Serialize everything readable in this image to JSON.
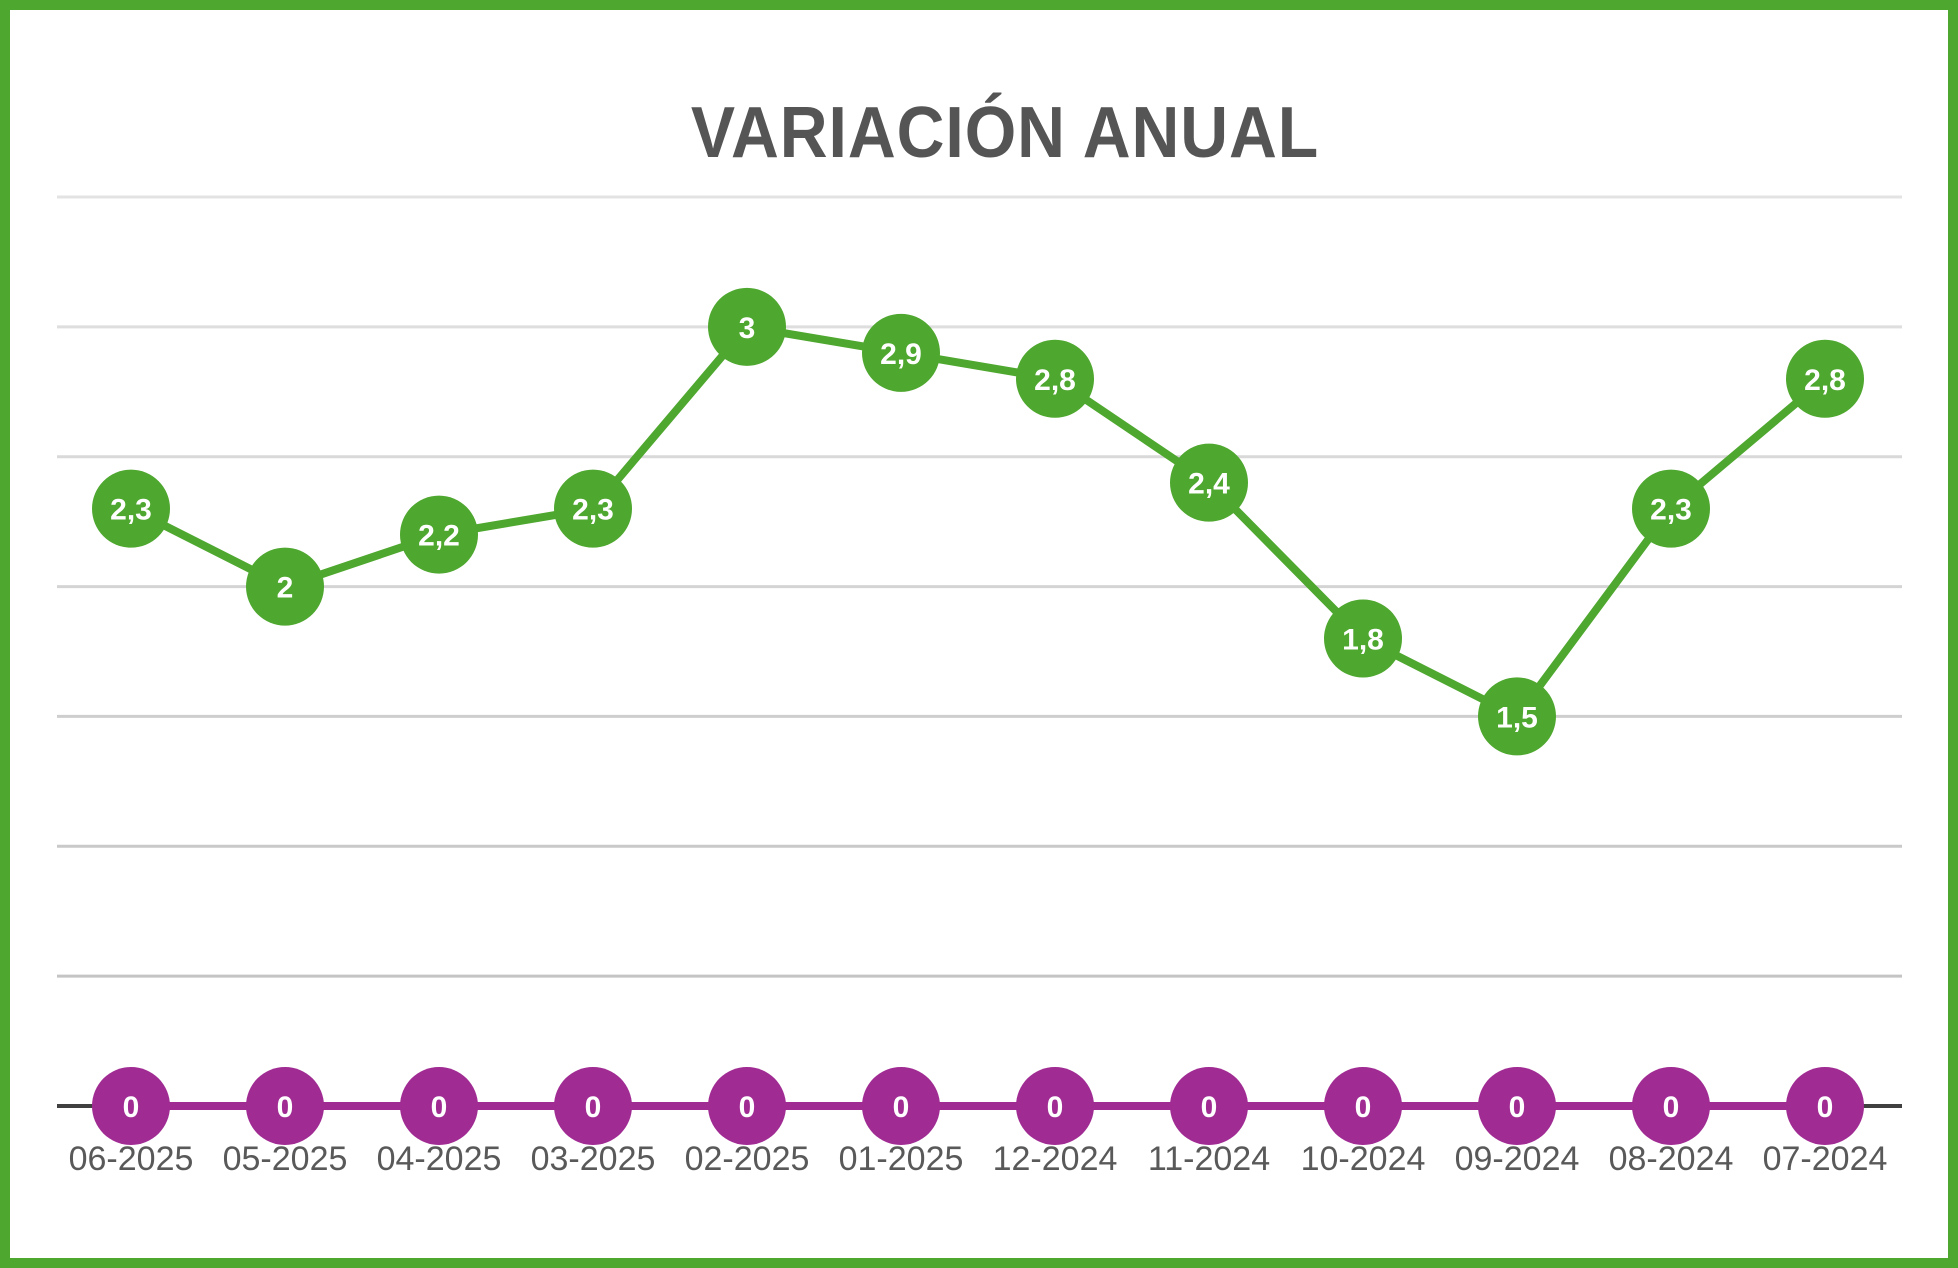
{
  "chart_data": {
    "type": "line",
    "title": "VARIACIÓN ANUAL",
    "xlabel": "",
    "ylabel": "",
    "categories": [
      "06-2025",
      "05-2025",
      "04-2025",
      "03-2025",
      "02-2025",
      "01-2025",
      "12-2024",
      "11-2024",
      "10-2024",
      "09-2024",
      "08-2024",
      "07-2024"
    ],
    "series": [
      {
        "color": "#4ea72e",
        "values": [
          2.3,
          2,
          2.2,
          2.3,
          3,
          2.9,
          2.8,
          2.4,
          1.8,
          1.5,
          2.3,
          2.8
        ],
        "labels": [
          "2,3",
          "2",
          "2,2",
          "2,3",
          "3",
          "2,9",
          "2,8",
          "2,4",
          "1,8",
          "1,5",
          "2,3",
          "2,8"
        ]
      },
      {
        "color": "#a02b93",
        "values": [
          0,
          0,
          0,
          0,
          0,
          0,
          0,
          0,
          0,
          0,
          0,
          0
        ],
        "labels": [
          "0",
          "0",
          "0",
          "0",
          "0",
          "0",
          "0",
          "0",
          "0",
          "0",
          "0",
          "0"
        ]
      }
    ],
    "ylim": [
      0,
      3.5
    ],
    "gridline_step": 0.5,
    "grid": true,
    "legend": "none",
    "colors": {
      "border": "#4ea72e",
      "title": "#555555",
      "grid": "#d9d9d9",
      "axis": "#404040",
      "tick_text": "#595959"
    }
  }
}
